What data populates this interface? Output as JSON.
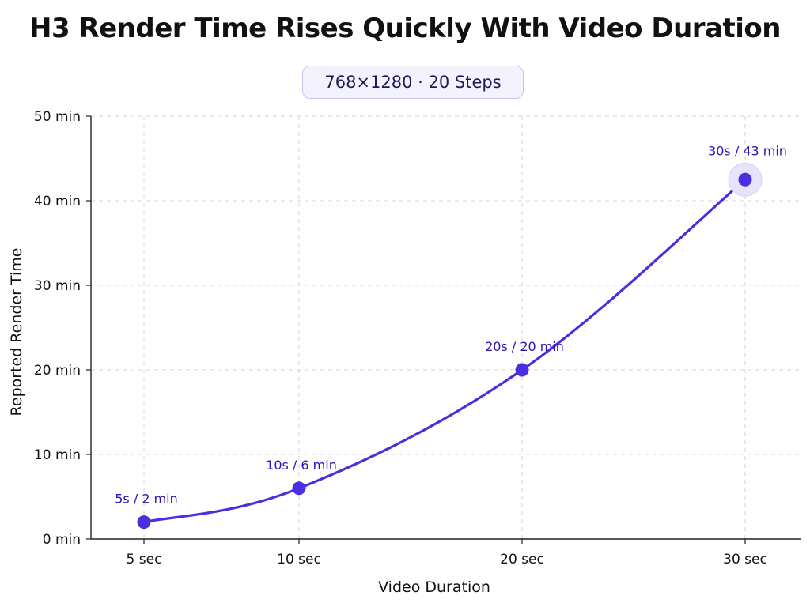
{
  "chart_data": {
    "type": "line",
    "title": "H3 Render Time Rises Quickly With Video Duration",
    "subtitle": "768×1280 · 20 Steps",
    "xlabel": "Video Duration",
    "ylabel": "Reported Render Time",
    "x": [
      5,
      10,
      20,
      30
    ],
    "x_tick_labels": [
      "5 sec",
      "10 sec",
      "20 sec",
      "30 sec"
    ],
    "y_ticks": [
      0,
      10,
      20,
      30,
      40,
      50
    ],
    "y_tick_labels": [
      "0 min",
      "10 min",
      "20 min",
      "30 min",
      "40 min",
      "50 min"
    ],
    "ylim": [
      0,
      50
    ],
    "series": [
      {
        "values": [
          2,
          6,
          20,
          42.5
        ]
      }
    ],
    "point_labels": [
      "5s / 2 min",
      "10s / 6 min",
      "20s / 20 min",
      "30s / 43 min"
    ],
    "line_color": "#4b2ee0",
    "point_color": "#4b2ee0",
    "label_color": "#2a14b8",
    "grid": true,
    "highlight_last_point": true
  }
}
